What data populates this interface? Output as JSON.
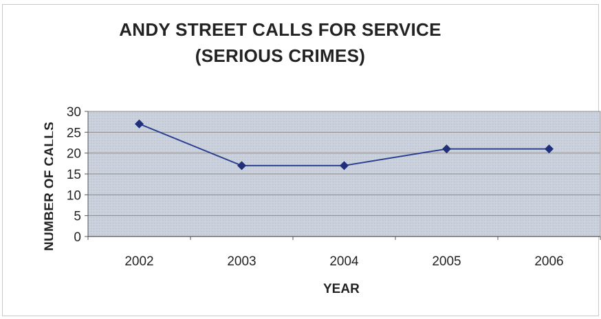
{
  "chart_data": {
    "type": "line",
    "title_lines": [
      "ANDY STREET CALLS FOR SERVICE",
      "(SERIOUS CRIMES)"
    ],
    "xlabel": "YEAR",
    "ylabel": "NUMBER OF CALLS",
    "categories": [
      "2002",
      "2003",
      "2004",
      "2005",
      "2006"
    ],
    "values": [
      27,
      17,
      17,
      21,
      21
    ],
    "ylim": [
      0,
      30
    ],
    "yticks": [
      "0",
      "5",
      "10",
      "15",
      "20",
      "25",
      "30"
    ],
    "grid": true,
    "legend": "none",
    "colors": {
      "line": "#2b3f8f",
      "marker": "#1f2f7a",
      "plot_bg": "#c9d0dc",
      "gridline": "#8c8c8c"
    }
  }
}
